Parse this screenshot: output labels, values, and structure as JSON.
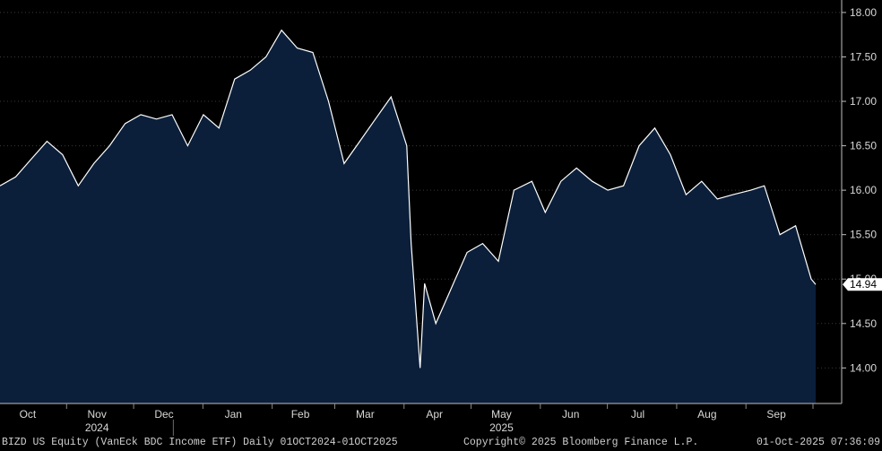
{
  "chart_data": {
    "type": "area",
    "ticker": "BIZD US Equity",
    "description": "(VanEck BDC Income ETF) Daily 01OCT2024-01OCT2025",
    "y_ticks": [
      "14.00",
      "14.50",
      "15.00",
      "15.50",
      "16.00",
      "16.50",
      "17.00",
      "17.50",
      "18.00"
    ],
    "ylim": [
      13.6,
      18.1
    ],
    "last_value": "14.94",
    "month_labels": [
      "Oct",
      "Nov",
      "Dec",
      "Jan",
      "Feb",
      "Mar",
      "Apr",
      "May",
      "Jun",
      "Jul",
      "Aug",
      "Sep"
    ],
    "year_labels": [
      "2024",
      "2025"
    ],
    "x": [
      "2024-10-01",
      "2024-10-08",
      "2024-10-15",
      "2024-10-22",
      "2024-10-29",
      "2024-11-05",
      "2024-11-12",
      "2024-11-19",
      "2024-11-26",
      "2024-12-03",
      "2024-12-10",
      "2024-12-17",
      "2024-12-24",
      "2024-12-31",
      "2025-01-07",
      "2025-01-14",
      "2025-01-21",
      "2025-01-28",
      "2025-02-04",
      "2025-02-11",
      "2025-02-18",
      "2025-02-25",
      "2025-03-04",
      "2025-03-11",
      "2025-03-18",
      "2025-03-25",
      "2025-04-01",
      "2025-04-03",
      "2025-04-07",
      "2025-04-09",
      "2025-04-14",
      "2025-04-21",
      "2025-04-28",
      "2025-05-05",
      "2025-05-12",
      "2025-05-19",
      "2025-05-27",
      "2025-06-02",
      "2025-06-09",
      "2025-06-16",
      "2025-06-23",
      "2025-06-30",
      "2025-07-07",
      "2025-07-14",
      "2025-07-21",
      "2025-07-28",
      "2025-08-04",
      "2025-08-11",
      "2025-08-18",
      "2025-08-25",
      "2025-09-02",
      "2025-09-08",
      "2025-09-15",
      "2025-09-22",
      "2025-09-29",
      "2025-10-01"
    ],
    "series": [
      {
        "values": [
          16.05,
          16.15,
          16.35,
          16.55,
          16.4,
          16.05,
          16.3,
          16.5,
          16.75,
          16.85,
          16.8,
          16.85,
          16.5,
          16.85,
          16.7,
          17.25,
          17.35,
          17.5,
          17.8,
          17.6,
          17.55,
          17.0,
          16.3,
          16.55,
          16.8,
          17.05,
          16.5,
          15.4,
          14.0,
          14.95,
          14.5,
          14.9,
          15.3,
          15.4,
          15.2,
          16.0,
          16.1,
          15.75,
          16.1,
          16.25,
          16.1,
          16.0,
          16.05,
          16.5,
          16.7,
          16.4,
          15.95,
          16.1,
          15.9,
          15.95,
          16.0,
          16.05,
          15.5,
          15.6,
          15.0,
          14.94
        ]
      }
    ],
    "grid": "horizontal dashed",
    "copyright": "Copyright© 2025 Bloomberg Finance L.P.",
    "timestamp": "01-Oct-2025 07:36:09",
    "colors": {
      "area": "#0b1f3a",
      "line": "#ffffff",
      "background": "#000000",
      "axis_text": "#d8d8d8"
    }
  }
}
